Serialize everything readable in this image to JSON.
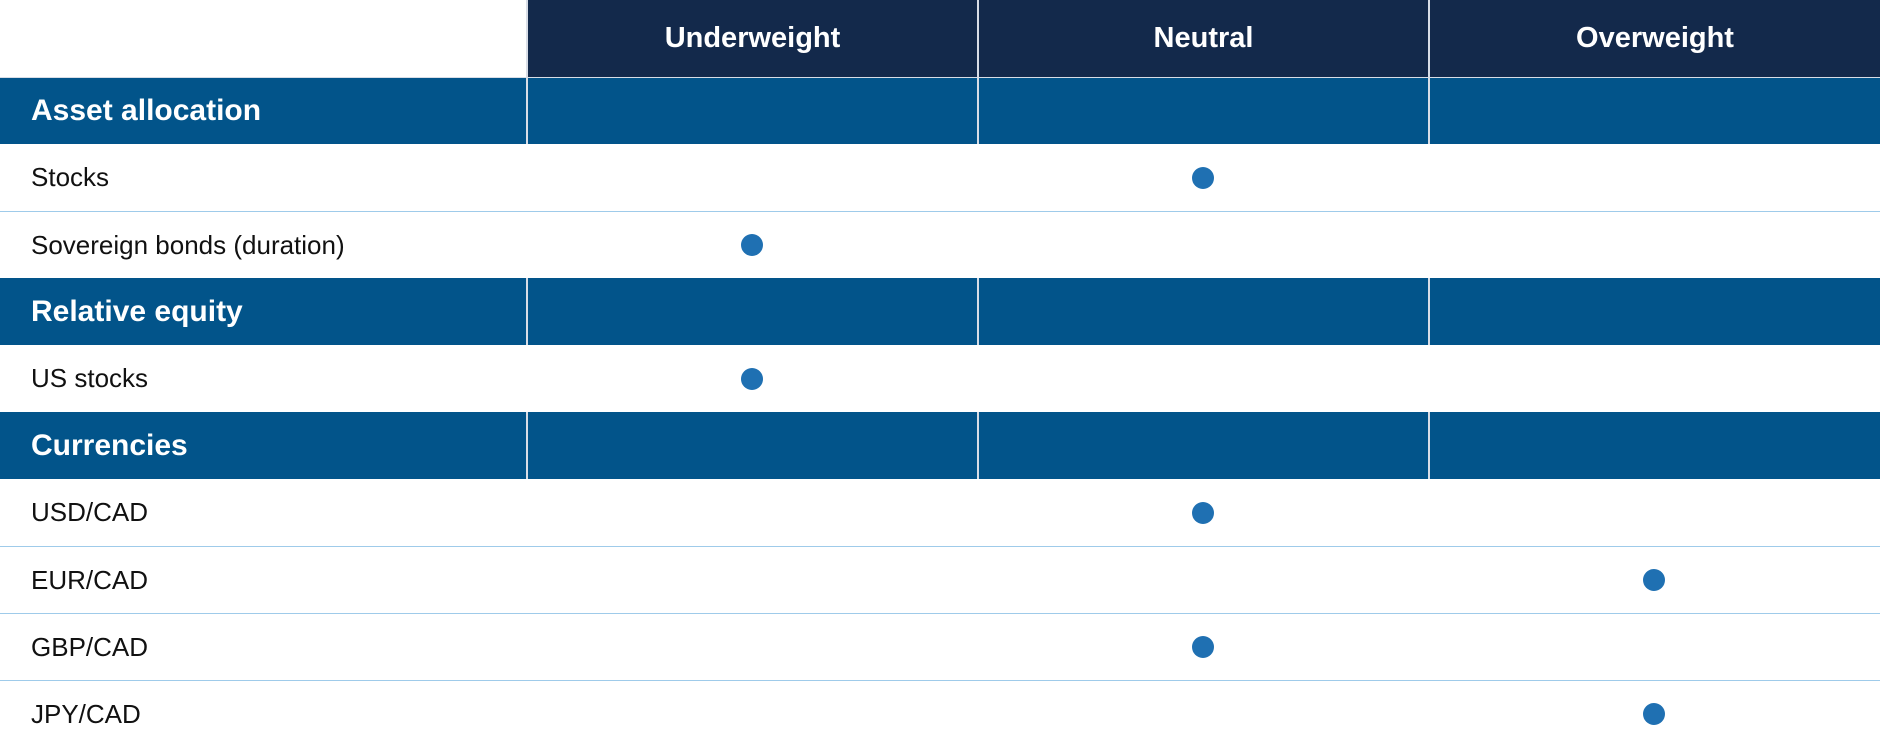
{
  "table": {
    "columns": [
      "Underweight",
      "Neutral",
      "Overweight"
    ],
    "sections": [
      {
        "title": "Asset allocation",
        "rows": [
          {
            "label": "Stocks",
            "position": 1
          },
          {
            "label": "Sovereign bonds (duration)",
            "position": 0
          }
        ]
      },
      {
        "title": "Relative equity",
        "rows": [
          {
            "label": "US stocks",
            "position": 0
          }
        ]
      },
      {
        "title": "Currencies",
        "rows": [
          {
            "label": "USD/CAD",
            "position": 1
          },
          {
            "label": "EUR/CAD",
            "position": 2
          },
          {
            "label": "GBP/CAD",
            "position": 1
          },
          {
            "label": "JPY/CAD",
            "position": 2
          }
        ]
      }
    ]
  }
}
